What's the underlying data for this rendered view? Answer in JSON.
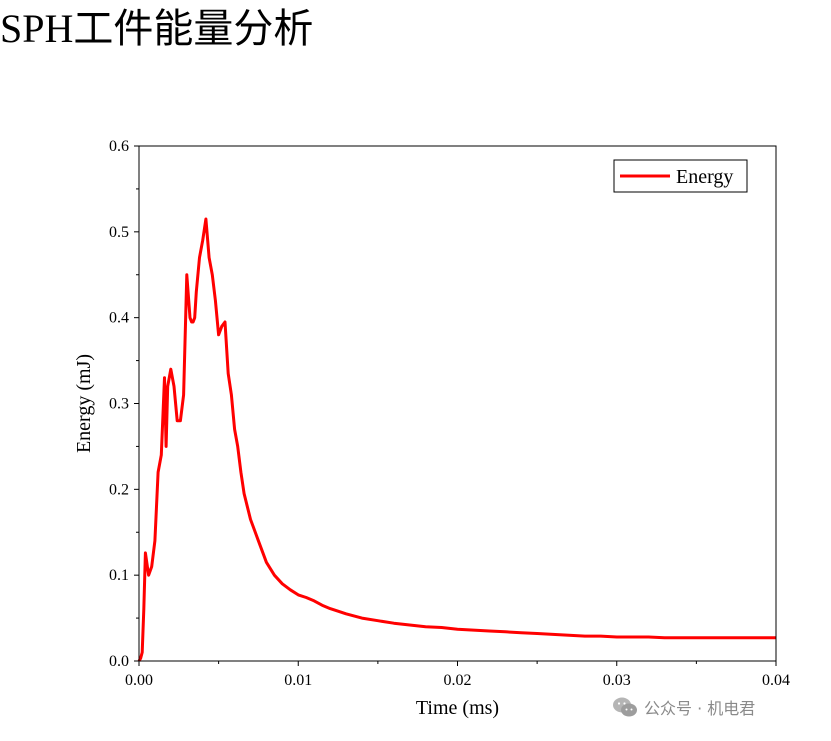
{
  "page": {
    "title": "SPH工件能量分析"
  },
  "watermark": {
    "text": "公众号 · 机电君",
    "icon": "wechat-icon"
  },
  "chart_data": {
    "type": "line",
    "title": "",
    "xlabel": "Time (ms)",
    "ylabel": "Energy (mJ)",
    "xlim": [
      0,
      0.04
    ],
    "ylim": [
      0,
      0.6
    ],
    "xticks": [
      0,
      0.01,
      0.02,
      0.03,
      0.04
    ],
    "xtick_labels": [
      "0.00",
      "0.01",
      "0.02",
      "0.03",
      "0.04"
    ],
    "yticks": [
      0,
      0.1,
      0.2,
      0.3,
      0.4,
      0.5,
      0.6
    ],
    "ytick_labels": [
      "0.0",
      "0.1",
      "0.2",
      "0.3",
      "0.4",
      "0.5",
      "0.6"
    ],
    "grid": false,
    "legend_position": "top-right",
    "series": [
      {
        "name": "Energy",
        "color": "#ff0000",
        "x": [
          0,
          0.0001,
          0.0002,
          0.0003,
          0.0004,
          0.0006,
          0.0008,
          0.001,
          0.0012,
          0.0014,
          0.0016,
          0.0017,
          0.0018,
          0.002,
          0.0022,
          0.0024,
          0.0026,
          0.0028,
          0.003,
          0.0032,
          0.0033,
          0.0034,
          0.0035,
          0.0036,
          0.0038,
          0.004,
          0.0042,
          0.0044,
          0.0046,
          0.0048,
          0.005,
          0.0052,
          0.0054,
          0.0056,
          0.0058,
          0.006,
          0.0062,
          0.0064,
          0.0066,
          0.0068,
          0.007,
          0.0072,
          0.0075,
          0.0078,
          0.008,
          0.0085,
          0.009,
          0.0095,
          0.01,
          0.0105,
          0.011,
          0.0115,
          0.012,
          0.0125,
          0.013,
          0.014,
          0.015,
          0.016,
          0.017,
          0.018,
          0.019,
          0.02,
          0.021,
          0.022,
          0.023,
          0.024,
          0.025,
          0.026,
          0.027,
          0.028,
          0.029,
          0.03,
          0.031,
          0.032,
          0.033,
          0.034,
          0.035,
          0.036,
          0.037,
          0.038,
          0.039,
          0.04
        ],
        "values": [
          0.0,
          0.003,
          0.01,
          0.06,
          0.126,
          0.1,
          0.11,
          0.14,
          0.22,
          0.24,
          0.33,
          0.25,
          0.32,
          0.34,
          0.32,
          0.28,
          0.28,
          0.31,
          0.45,
          0.4,
          0.395,
          0.395,
          0.4,
          0.43,
          0.47,
          0.49,
          0.515,
          0.47,
          0.45,
          0.42,
          0.38,
          0.39,
          0.395,
          0.335,
          0.31,
          0.27,
          0.25,
          0.22,
          0.195,
          0.18,
          0.165,
          0.155,
          0.14,
          0.125,
          0.115,
          0.1,
          0.09,
          0.083,
          0.077,
          0.074,
          0.07,
          0.065,
          0.061,
          0.058,
          0.055,
          0.05,
          0.047,
          0.044,
          0.042,
          0.04,
          0.039,
          0.037,
          0.036,
          0.035,
          0.034,
          0.033,
          0.032,
          0.031,
          0.03,
          0.029,
          0.029,
          0.028,
          0.028,
          0.028,
          0.027,
          0.027,
          0.027,
          0.027,
          0.027,
          0.027,
          0.027,
          0.027
        ]
      }
    ]
  }
}
